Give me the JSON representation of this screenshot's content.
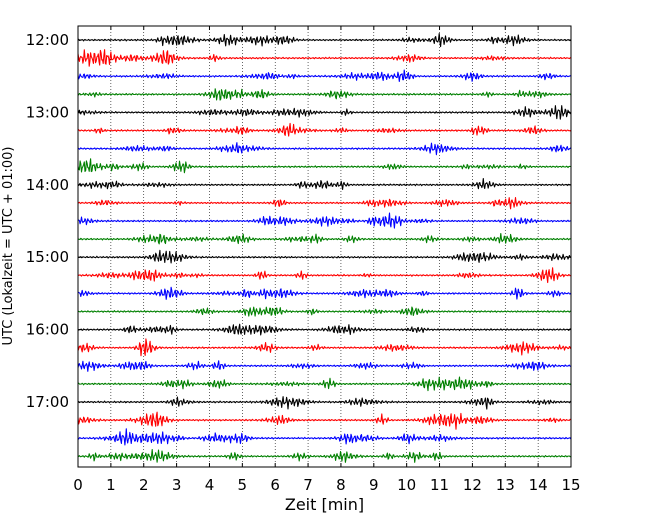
{
  "chart_data": {
    "type": "line",
    "title": "",
    "xlabel": "Zeit  [min]",
    "ylabel": "UTC (Lokalzeit = UTC + 01:00)",
    "xlim": [
      0,
      15
    ],
    "x_ticks": [
      0,
      1,
      2,
      3,
      4,
      5,
      6,
      7,
      8,
      9,
      10,
      11,
      12,
      13,
      14,
      15
    ],
    "y_tick_labels": [
      "12:00",
      "13:00",
      "14:00",
      "15:00",
      "16:00",
      "17:00"
    ],
    "row_interval_min": 15,
    "start_time": "12:00",
    "grid": "vertical dotted lines at each minute",
    "colors": [
      "#000000",
      "#ff0000",
      "#0000ff",
      "#008000"
    ],
    "series": [
      {
        "start": "12:00",
        "color": "#000000"
      },
      {
        "start": "12:15",
        "color": "#ff0000"
      },
      {
        "start": "12:30",
        "color": "#0000ff"
      },
      {
        "start": "12:45",
        "color": "#008000"
      },
      {
        "start": "13:00",
        "color": "#000000"
      },
      {
        "start": "13:15",
        "color": "#ff0000"
      },
      {
        "start": "13:30",
        "color": "#0000ff"
      },
      {
        "start": "13:45",
        "color": "#008000"
      },
      {
        "start": "14:00",
        "color": "#000000"
      },
      {
        "start": "14:15",
        "color": "#ff0000"
      },
      {
        "start": "14:30",
        "color": "#0000ff"
      },
      {
        "start": "14:45",
        "color": "#008000"
      },
      {
        "start": "15:00",
        "color": "#000000"
      },
      {
        "start": "15:15",
        "color": "#ff0000"
      },
      {
        "start": "15:30",
        "color": "#0000ff"
      },
      {
        "start": "15:45",
        "color": "#008000"
      },
      {
        "start": "16:00",
        "color": "#000000"
      },
      {
        "start": "16:15",
        "color": "#ff0000"
      },
      {
        "start": "16:30",
        "color": "#0000ff"
      },
      {
        "start": "16:45",
        "color": "#008000"
      },
      {
        "start": "17:00",
        "color": "#000000"
      },
      {
        "start": "17:15",
        "color": "#ff0000"
      },
      {
        "start": "17:30",
        "color": "#0000ff"
      },
      {
        "start": "17:45",
        "color": "#008000"
      }
    ]
  }
}
